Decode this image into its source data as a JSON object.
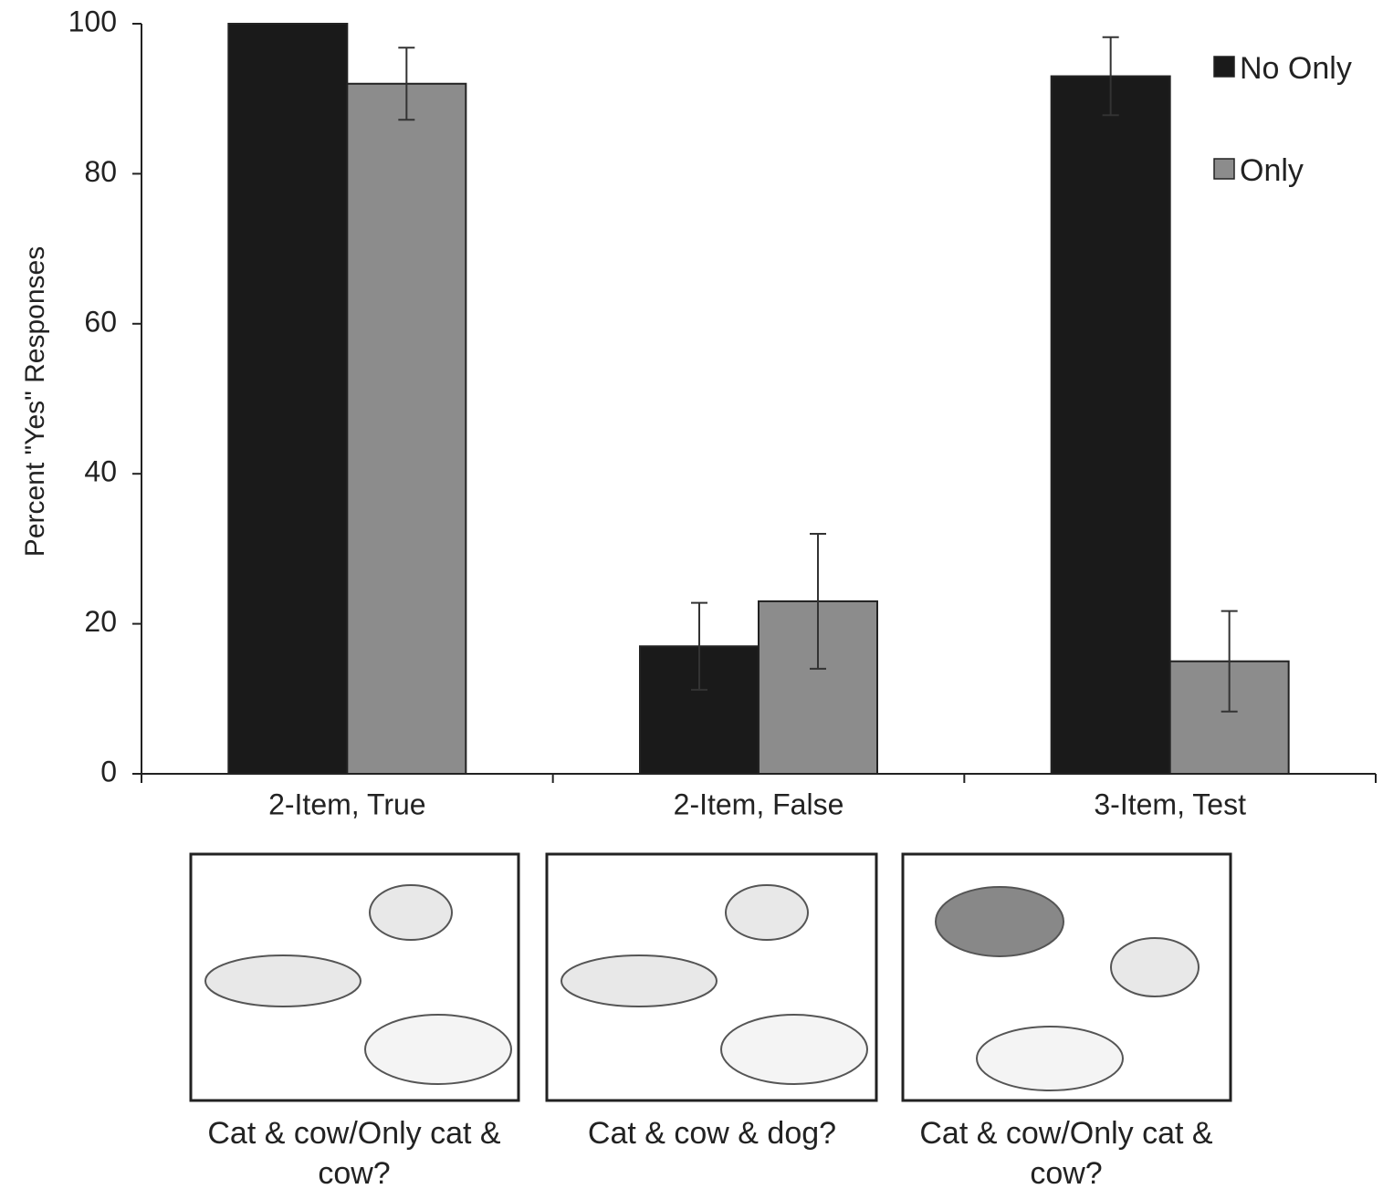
{
  "chart_data": {
    "type": "bar",
    "y_label": "Percent \"Yes\" Responses",
    "categories": [
      "2-Item, True",
      "2-Item, False",
      "3-Item, Test"
    ],
    "series": [
      {
        "name": "No Only",
        "color": "#1a1a1a",
        "values": [
          100,
          17,
          93
        ],
        "errors": [
          null,
          5.8,
          5.2
        ]
      },
      {
        "name": "Only",
        "color": "#8c8c8c",
        "values": [
          92,
          23,
          15
        ],
        "errors": [
          4.8,
          9,
          6.7
        ]
      }
    ],
    "ylim": [
      0,
      100
    ],
    "yticks": [
      0,
      20,
      40,
      60,
      80,
      100
    ],
    "legend": "top-right",
    "grid": false
  },
  "panels": [
    {
      "caption": "Cat & cow/Only cat & cow?"
    },
    {
      "caption": "Cat & cow & dog?"
    },
    {
      "caption": "Cat & cow/Only cat & cow?"
    }
  ]
}
